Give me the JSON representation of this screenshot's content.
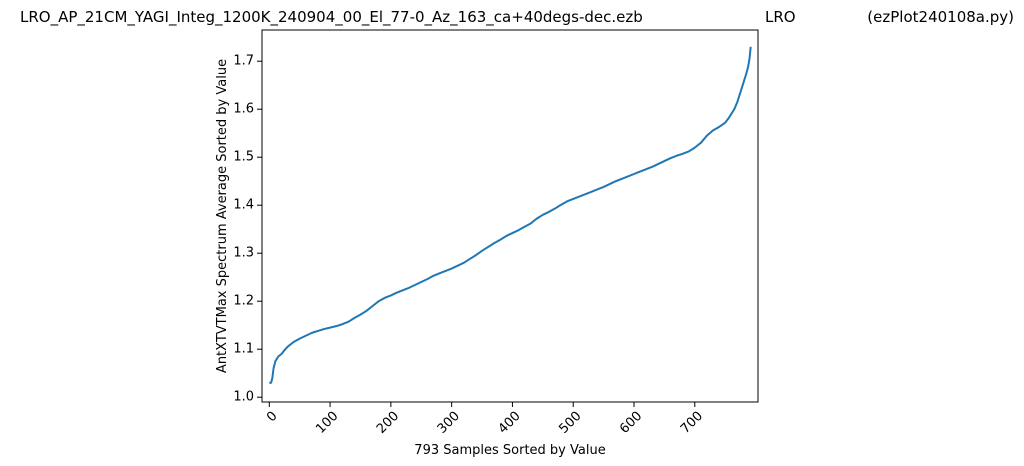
{
  "header": {
    "title_left": "LRO_AP_21CM_YAGI_Integ_1200K_240904_00_El_77-0_Az_163_ca+40degs-dec.ezb",
    "title_center": "LRO",
    "title_right": "(ezPlot240108a.py)"
  },
  "chart_data": {
    "type": "line",
    "xlabel": "793 Samples Sorted by Value",
    "ylabel": "AntXTVTMax Spectrum Average Sorted by Value",
    "xlim": [
      -12,
      804
    ],
    "ylim": [
      0.99,
      1.765
    ],
    "xticks": [
      0,
      100,
      200,
      300,
      400,
      500,
      600,
      700
    ],
    "yticks": [
      1.0,
      1.1,
      1.2,
      1.3,
      1.4,
      1.5,
      1.6,
      1.7
    ],
    "xtick_labels": [
      "0",
      "100",
      "200",
      "300",
      "400",
      "500",
      "600",
      "700"
    ],
    "ytick_labels": [
      "1.0",
      "1.1",
      "1.2",
      "1.3",
      "1.4",
      "1.5",
      "1.6",
      "1.7"
    ],
    "grid": false,
    "line_color": "#1f77b4",
    "series": [
      {
        "x": [
          0,
          3,
          5,
          7,
          10,
          15,
          20,
          25,
          30,
          40,
          50,
          60,
          70,
          80,
          90,
          100,
          110,
          120,
          130,
          140,
          150,
          160,
          170,
          180,
          190,
          200,
          210,
          220,
          230,
          240,
          250,
          260,
          270,
          280,
          290,
          300,
          310,
          320,
          330,
          340,
          350,
          360,
          370,
          380,
          390,
          400,
          410,
          420,
          430,
          440,
          450,
          460,
          470,
          480,
          490,
          500,
          510,
          520,
          530,
          540,
          550,
          560,
          570,
          580,
          590,
          600,
          610,
          620,
          630,
          640,
          650,
          660,
          670,
          680,
          690,
          700,
          710,
          720,
          730,
          740,
          750,
          755,
          760,
          765,
          770,
          775,
          780,
          785,
          788,
          790,
          792
        ],
        "y": [
          1.03,
          1.03,
          1.04,
          1.06,
          1.075,
          1.085,
          1.09,
          1.098,
          1.105,
          1.115,
          1.122,
          1.128,
          1.134,
          1.138,
          1.142,
          1.145,
          1.148,
          1.152,
          1.157,
          1.165,
          1.172,
          1.18,
          1.19,
          1.2,
          1.207,
          1.212,
          1.218,
          1.223,
          1.228,
          1.234,
          1.24,
          1.246,
          1.253,
          1.258,
          1.263,
          1.268,
          1.274,
          1.28,
          1.288,
          1.296,
          1.305,
          1.313,
          1.321,
          1.328,
          1.336,
          1.342,
          1.348,
          1.355,
          1.362,
          1.372,
          1.38,
          1.386,
          1.393,
          1.401,
          1.408,
          1.413,
          1.418,
          1.423,
          1.428,
          1.433,
          1.438,
          1.444,
          1.45,
          1.455,
          1.46,
          1.465,
          1.47,
          1.475,
          1.48,
          1.486,
          1.492,
          1.498,
          1.503,
          1.507,
          1.512,
          1.52,
          1.53,
          1.545,
          1.556,
          1.563,
          1.572,
          1.58,
          1.59,
          1.6,
          1.615,
          1.635,
          1.655,
          1.675,
          1.69,
          1.705,
          1.73
        ]
      }
    ]
  }
}
